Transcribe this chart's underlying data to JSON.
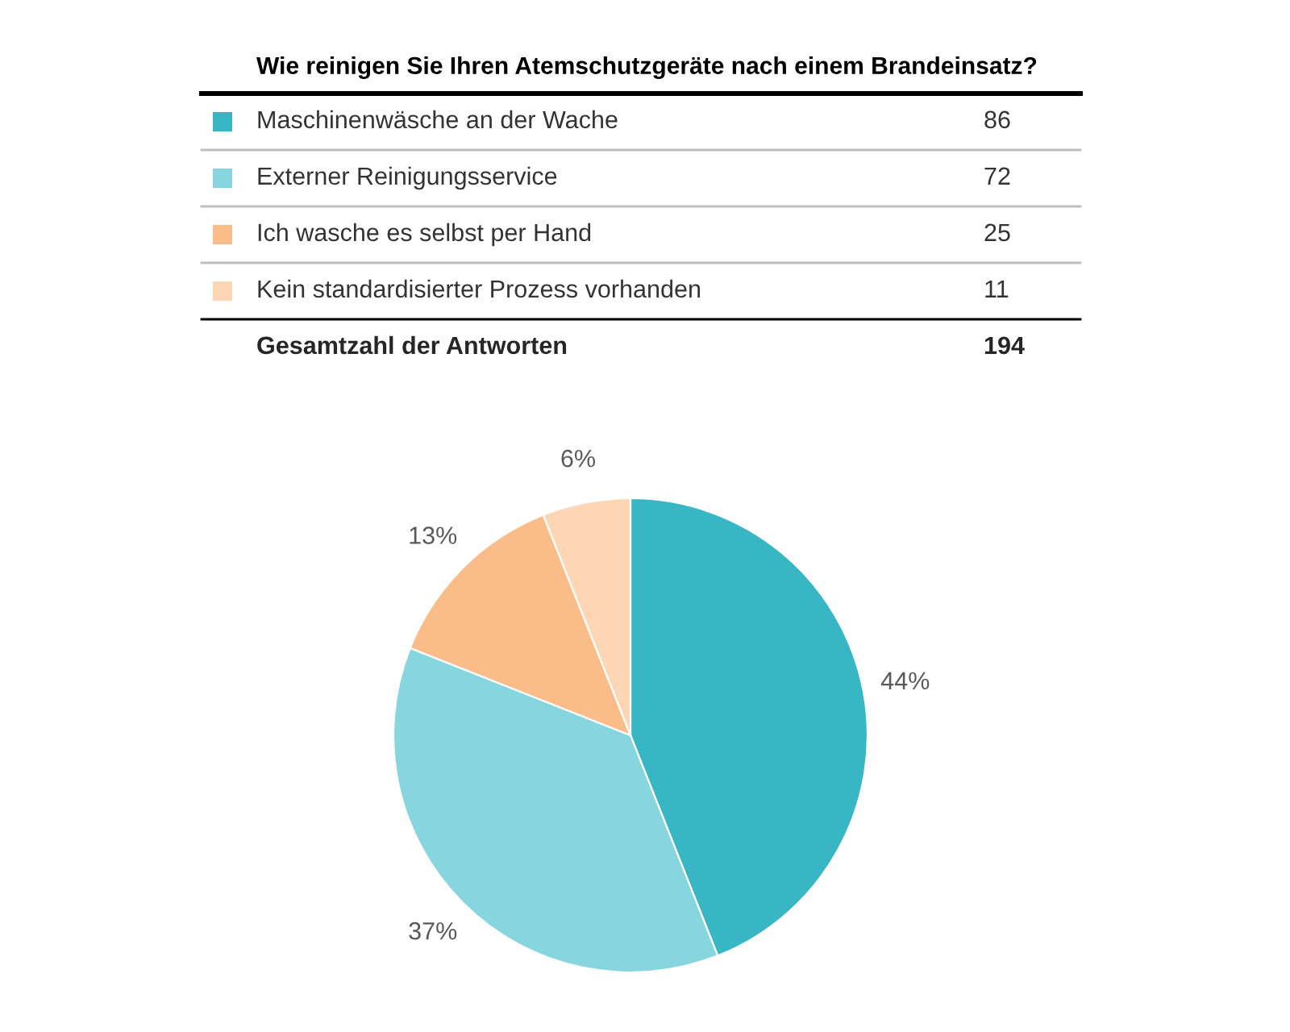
{
  "chart_data": {
    "type": "pie",
    "title": "Wie reinigen Sie Ihren Atemschutzgeräte nach einem Brandeinsatz?",
    "categories": [
      "Maschinenwäsche an der Wache",
      "Externer Reinigungsservice",
      "Ich wasche es selbst per Hand",
      "Kein standardisierter Prozess vorhanden"
    ],
    "values": [
      44,
      37,
      13,
      6
    ],
    "colors": [
      "#38b6c4",
      "#87d5de",
      "#fabd89",
      "#fdd6b6"
    ],
    "value_labels": [
      "44%",
      "37%",
      "13%",
      "6%"
    ],
    "legend": "top",
    "annotations": [
      "86",
      "72",
      "25",
      "11",
      "Gesamtzahl der Antworten"
    ],
    "totals": [
      "194"
    ]
  }
}
